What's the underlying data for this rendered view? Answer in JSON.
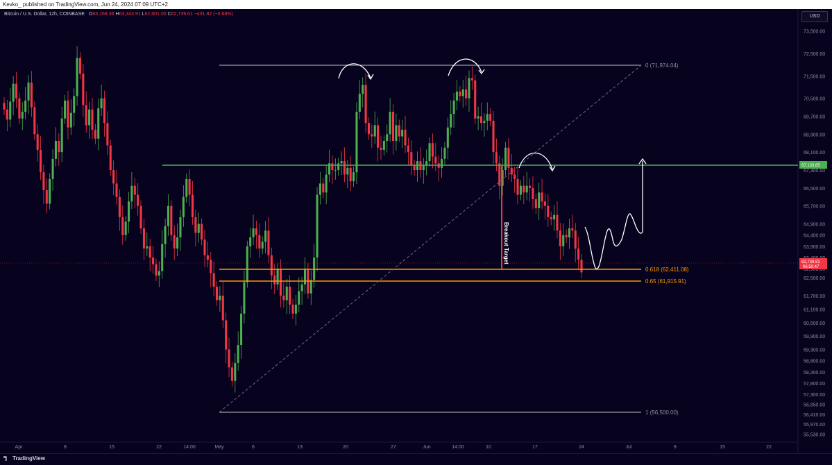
{
  "header": {
    "publisher_text": "Kevko_ published on TradingView.com, Jun 24, 2024 07:09 UTC+2"
  },
  "legend": {
    "symbol": "Bitcoin / U.S. Dollar, 12h, COINBASE",
    "o_label": "O",
    "o_value": "63,169.36",
    "h_label": "H",
    "h_value": "63,343.91",
    "l_label": "L",
    "l_value": "62,601.00",
    "c_label": "C",
    "c_value": "62,739.61",
    "change": "−431.82 (−0.68%)"
  },
  "currency_button": "USD",
  "footer": {
    "brand": "TradingView"
  },
  "colors": {
    "background": "#07031e",
    "up": "#089981",
    "up_candle": "#4caf50",
    "down": "#f23645",
    "fib_618": "#ff9800",
    "green_line": "#4caf50",
    "gray_line": "#bfbfc7",
    "annotation": "#ffffff"
  },
  "chart_data": {
    "type": "candlestick",
    "title": "Bitcoin / U.S. Dollar, 12h, COINBASE",
    "ylim": [
      55430,
      74050
    ],
    "y_ticks": [
      "73,500.00",
      "72,500.00",
      "71,500.00",
      "70,500.00",
      "69,700.00",
      "68,900.00",
      "68,100.00",
      "67,300.00",
      "66,500.00",
      "65,700.00",
      "64,900.00",
      "64,400.00",
      "63,900.00",
      "63,400.00",
      "62,900.00",
      "62,500.00",
      "61,700.00",
      "61,100.00",
      "60,500.00",
      "59,900.00",
      "59,300.00",
      "58,800.00",
      "58,300.00",
      "57,800.00",
      "57,300.00",
      "56,850.00",
      "56,410.00",
      "55,970.00",
      "55,530.00"
    ],
    "x_ticks": [
      "Apr",
      "8",
      "15",
      "22",
      "14:00",
      "May",
      "6",
      "13",
      "20",
      "27",
      "Jun",
      "14:00",
      "10",
      "17",
      "24",
      "Jul",
      "8",
      "15",
      "22"
    ],
    "annotations": {
      "fib_0": "0 (71,974.04)",
      "fib_618": "0.618 (62,411.08)",
      "fib_65": "0.65 (61,915.91)",
      "fib_1": "1 (56,500.00)",
      "breakout_text": "Breakout Target",
      "green_line_price": "67,133.85",
      "current_price": "62,739.61",
      "countdown": "06:50:47"
    },
    "levels": {
      "fib_0": 71974.04,
      "fib_618": 62411.08,
      "fib_65": 61915.91,
      "fib_1": 56500.0,
      "green_line": 67133.85,
      "current": 62739.61
    },
    "candles_close": [
      70000,
      69550,
      70350,
      71150,
      70500,
      69600,
      69900,
      70400,
      71200,
      70100,
      68900,
      68200,
      67200,
      66400,
      65800,
      66900,
      67800,
      68600,
      68100,
      69600,
      70400,
      69200,
      69850,
      70600,
      72300,
      71600,
      70200,
      69300,
      70000,
      69100,
      68700,
      70050,
      70500,
      69400,
      68400,
      67300,
      66700,
      66100,
      65200,
      64400,
      65000,
      65900,
      66600,
      66200,
      65700,
      64700,
      63800,
      63900,
      63400,
      63100,
      62600,
      62800,
      64000,
      64800,
      65700,
      64400,
      63800,
      64300,
      65200,
      66100,
      66900,
      66200,
      65200,
      64500,
      64900,
      64200,
      63500,
      63300,
      62700,
      62100,
      61500,
      61700,
      60600,
      59300,
      58500,
      57900,
      58700,
      59500,
      60900,
      62300,
      63900,
      64300,
      64700,
      64400,
      63800,
      64100,
      64600,
      63500,
      62600,
      62200,
      62900,
      61700,
      61500,
      62100,
      61300,
      60900,
      61300,
      61900,
      62200,
      62900,
      61800,
      62400,
      63400,
      66200,
      66700,
      66300,
      67100,
      67600,
      67300,
      67300,
      67600,
      67700,
      67100,
      67400,
      66800,
      67200,
      69900,
      70700,
      71100,
      69400,
      68900,
      68800,
      69300,
      68300,
      68200,
      68600,
      68900,
      69900,
      68600,
      69300,
      68800,
      69100,
      68400,
      68100,
      67500,
      67300,
      67700,
      67300,
      67500,
      67700,
      68500,
      67900,
      67600,
      67400,
      67800,
      68300,
      69200,
      69800,
      70400,
      70800,
      70600,
      70900,
      70500,
      71400,
      71300,
      69600,
      69700,
      69400,
      69500,
      69800,
      69500,
      68100,
      67600,
      66600,
      67300,
      68300,
      67400,
      67100,
      66900,
      66200,
      66600,
      66300,
      66600,
      66500,
      66000,
      65600,
      66300,
      65900,
      65700,
      65200,
      65100,
      65300,
      64600,
      63900,
      64400,
      64300,
      64700,
      64600,
      63800,
      63300,
      62740
    ],
    "projection": "hand-drawn path: dip to ~62,411 then rally toward ~67,400"
  }
}
